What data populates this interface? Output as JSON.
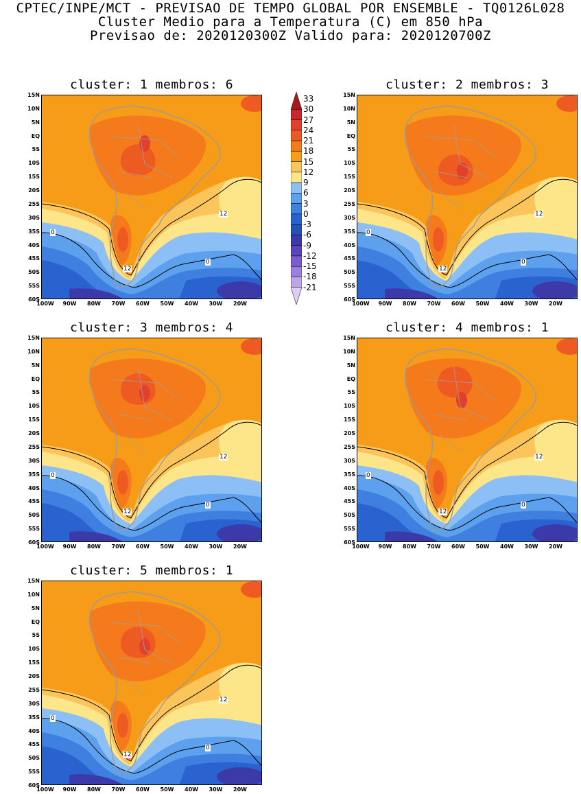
{
  "header": {
    "line1": "CPTEC/INPE/MCT - PREVISAO DE TEMPO GLOBAL POR ENSEMBLE - TQ0126L028",
    "line2": "Cluster Medio para a Temperatura (C) em 850 hPa",
    "line3": "Previsao de: 2020120300Z   Valido para: 2020120700Z"
  },
  "panels": [
    {
      "title": "cluster: 1   membros: 6"
    },
    {
      "title": "cluster: 2   membros: 3"
    },
    {
      "title": "cluster: 3   membros: 4"
    },
    {
      "title": "cluster: 4   membros: 1"
    },
    {
      "title": "cluster: 5   membros: 1"
    }
  ],
  "lat_ticks": [
    "15N",
    "10N",
    "5N",
    "EQ",
    "5S",
    "10S",
    "15S",
    "20S",
    "25S",
    "30S",
    "35S",
    "40S",
    "45S",
    "50S",
    "55S",
    "60S"
  ],
  "lon_ticks": [
    "100W",
    "90W",
    "80W",
    "70W",
    "60W",
    "50W",
    "40W",
    "30W",
    "20W"
  ],
  "colorbar": {
    "labels": [
      "33",
      "30",
      "27",
      "24",
      "21",
      "18",
      "15",
      "12",
      "9",
      "6",
      "3",
      "0",
      "-3",
      "-6",
      "-9",
      "-12",
      "-15",
      "-18",
      "-21"
    ],
    "colors": [
      "#a51a1a",
      "#c8282a",
      "#e0402c",
      "#ee5b22",
      "#f57a1c",
      "#f79c18",
      "#fbc55c",
      "#fde58a",
      "#8cbff5",
      "#5da0ee",
      "#3e7fe0",
      "#2a63d0",
      "#2450b8",
      "#3b3aa8",
      "#5a45bc",
      "#7a5ed0",
      "#9a80dc",
      "#bca6e8",
      "#dccdf4"
    ]
  },
  "contour_labels": {
    "twelve": "12",
    "zero": "0"
  }
}
